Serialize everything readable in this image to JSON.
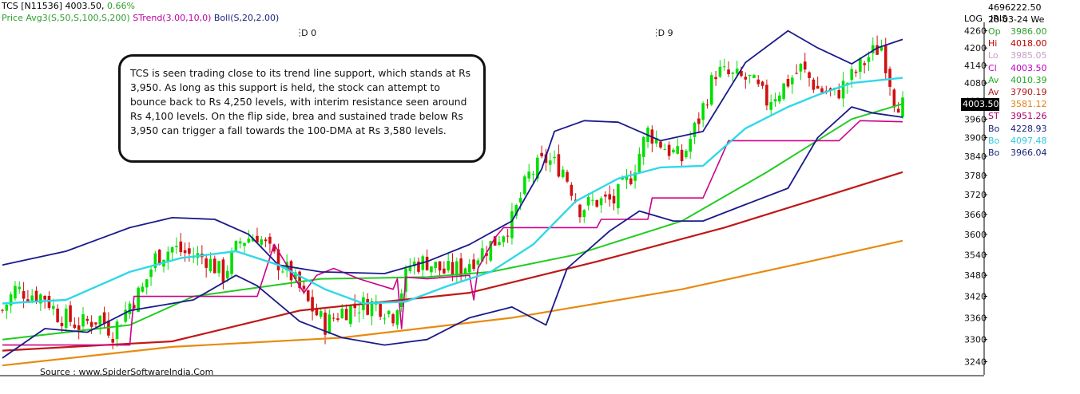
{
  "header": {
    "symbol": "TCS [N11536]",
    "last_price": "4003.50,",
    "change_pct": "0.66%",
    "legend_price": "Price",
    "legend_avg": "Avg3(S,50,S,100,S,200)",
    "legend_strend": "STrend(3.00,10,0)",
    "legend_boll": "Boll(S,20,2.00)",
    "volume": "4696222.50",
    "log_label": "LOG",
    "iris_label": "IRIS",
    "date": "20-03-24 We"
  },
  "info_panel": [
    {
      "label": "Op",
      "value": "3986.00",
      "color": "#2e9e2e"
    },
    {
      "label": "Hi",
      "value": "4018.00",
      "color": "#c00000"
    },
    {
      "label": "Lo",
      "value": "3985.05",
      "color": "#c8a0c8"
    },
    {
      "label": "Cl",
      "value": "4003.50",
      "color": "#c000c0"
    },
    {
      "label": "Av",
      "value": "4010.39",
      "color": "#22aa22"
    },
    {
      "label": "Av",
      "value": "3790.19",
      "color": "#b01818"
    },
    {
      "label": "Av",
      "value": "3581.12",
      "color": "#e08010"
    },
    {
      "label": "ST",
      "value": "3951.26",
      "color": "#b0006a"
    },
    {
      "label": "Bo",
      "value": "4228.93",
      "color": "#1a237e"
    },
    {
      "label": "Bo",
      "value": "4097.48",
      "color": "#30c8e0"
    },
    {
      "label": "Bo",
      "value": "3966.04",
      "color": "#1a237e"
    }
  ],
  "current_price_label": "4003.50",
  "annotation": "TCS is seen trading close to its trend line support, which stands at Rs 3,950. As long as this support is held, the stock can attempt to bounce back to Rs 4,250 levels, with interim resistance seen around Rs 4,100 levels. On the flip side, brea and sustained trade below Rs 3,950 can trigger a fall towards the 100-DMA at Rs 3,580 levels.",
  "source": "Source : www.SpiderSoftwareIndia.Com",
  "chart_data": {
    "type": "line",
    "log_scale": true,
    "grid": false,
    "y_ticks": [
      4260,
      4200,
      4140,
      4080,
      4020,
      3960,
      3900,
      3840,
      3780,
      3720,
      3660,
      3600,
      3540,
      3480,
      3420,
      3360,
      3300,
      3240
    ],
    "ylim": [
      3205,
      4290
    ],
    "x_markers": [
      {
        "label": "D 0",
        "bar": 70
      },
      {
        "label": "D 9",
        "bar": 154
      }
    ],
    "bar_count": 213,
    "colors": {
      "up": "#00e000",
      "down": "#d01010",
      "sma50": "#22cc22",
      "sma100": "#c01818",
      "sma200": "#e88a10",
      "strend": "#cc0088",
      "boll_outer": "#1a1a8c",
      "boll_mid": "#30d8e8"
    },
    "price_anchors": [
      [
        0,
        3380
      ],
      [
        3,
        3440
      ],
      [
        6,
        3430
      ],
      [
        10,
        3420
      ],
      [
        13,
        3370
      ],
      [
        18,
        3340
      ],
      [
        23,
        3360
      ],
      [
        26,
        3320
      ],
      [
        30,
        3400
      ],
      [
        33,
        3440
      ],
      [
        36,
        3530
      ],
      [
        40,
        3560
      ],
      [
        44,
        3540
      ],
      [
        48,
        3530
      ],
      [
        52,
        3480
      ],
      [
        56,
        3580
      ],
      [
        60,
        3600
      ],
      [
        64,
        3530
      ],
      [
        68,
        3480
      ],
      [
        72,
        3400
      ],
      [
        76,
        3340
      ],
      [
        80,
        3380
      ],
      [
        84,
        3395
      ],
      [
        88,
        3400
      ],
      [
        92,
        3370
      ],
      [
        96,
        3510
      ],
      [
        100,
        3520
      ],
      [
        104,
        3490
      ],
      [
        108,
        3500
      ],
      [
        112,
        3540
      ],
      [
        116,
        3580
      ],
      [
        120,
        3640
      ],
      [
        124,
        3780
      ],
      [
        128,
        3830
      ],
      [
        132,
        3800
      ],
      [
        136,
        3680
      ],
      [
        140,
        3700
      ],
      [
        144,
        3700
      ],
      [
        148,
        3780
      ],
      [
        152,
        3920
      ],
      [
        156,
        3870
      ],
      [
        160,
        3830
      ],
      [
        164,
        3960
      ],
      [
        168,
        4120
      ],
      [
        172,
        4100
      ],
      [
        176,
        4090
      ],
      [
        180,
        4020
      ],
      [
        184,
        4070
      ],
      [
        188,
        4130
      ],
      [
        192,
        4060
      ],
      [
        196,
        4040
      ],
      [
        200,
        4100
      ],
      [
        204,
        4170
      ],
      [
        207,
        4210
      ],
      [
        210,
        4030
      ],
      [
        212,
        4003.5
      ]
    ],
    "sma50_points": [
      [
        0,
        3300
      ],
      [
        30,
        3340
      ],
      [
        45,
        3420
      ],
      [
        75,
        3470
      ],
      [
        100,
        3475
      ],
      [
        115,
        3490
      ],
      [
        135,
        3540
      ],
      [
        160,
        3640
      ],
      [
        180,
        3790
      ],
      [
        200,
        3960
      ],
      [
        212,
        4010.39
      ]
    ],
    "sma100_points": [
      [
        0,
        3270
      ],
      [
        40,
        3295
      ],
      [
        70,
        3380
      ],
      [
        110,
        3430
      ],
      [
        140,
        3520
      ],
      [
        170,
        3620
      ],
      [
        195,
        3720
      ],
      [
        212,
        3790.19
      ]
    ],
    "sma200_points": [
      [
        0,
        3230
      ],
      [
        40,
        3280
      ],
      [
        80,
        3305
      ],
      [
        120,
        3360
      ],
      [
        160,
        3440
      ],
      [
        190,
        3520
      ],
      [
        212,
        3581.12
      ]
    ],
    "strend_points": [
      [
        0,
        3285
      ],
      [
        30,
        3285
      ],
      [
        31,
        3420
      ],
      [
        60,
        3420
      ],
      [
        64,
        3570
      ],
      [
        71,
        3430
      ],
      [
        74,
        3480
      ],
      [
        78,
        3500
      ],
      [
        84,
        3470
      ],
      [
        92,
        3440
      ],
      [
        93,
        3470
      ],
      [
        94,
        3330
      ],
      [
        95,
        3475
      ],
      [
        100,
        3470
      ],
      [
        110,
        3480
      ],
      [
        111,
        3410
      ],
      [
        112,
        3500
      ],
      [
        116,
        3590
      ],
      [
        118,
        3620
      ],
      [
        140,
        3620
      ],
      [
        141,
        3645
      ],
      [
        152,
        3645
      ],
      [
        153,
        3710
      ],
      [
        165,
        3710
      ],
      [
        171,
        3890
      ],
      [
        176,
        3890
      ],
      [
        177,
        3890
      ],
      [
        197,
        3890
      ],
      [
        202,
        3955
      ],
      [
        212,
        3951.26
      ]
    ],
    "boll_upper_points": [
      [
        0,
        3510
      ],
      [
        15,
        3550
      ],
      [
        30,
        3620
      ],
      [
        40,
        3650
      ],
      [
        50,
        3645
      ],
      [
        58,
        3600
      ],
      [
        65,
        3510
      ],
      [
        75,
        3490
      ],
      [
        90,
        3485
      ],
      [
        100,
        3520
      ],
      [
        110,
        3570
      ],
      [
        120,
        3640
      ],
      [
        127,
        3800
      ],
      [
        130,
        3920
      ],
      [
        137,
        3955
      ],
      [
        145,
        3950
      ],
      [
        155,
        3890
      ],
      [
        165,
        3920
      ],
      [
        175,
        4150
      ],
      [
        185,
        4260
      ],
      [
        192,
        4200
      ],
      [
        200,
        4145
      ],
      [
        206,
        4200
      ],
      [
        212,
        4230
      ]
    ],
    "boll_mid_points": [
      [
        0,
        3400
      ],
      [
        15,
        3410
      ],
      [
        30,
        3490
      ],
      [
        42,
        3530
      ],
      [
        55,
        3550
      ],
      [
        65,
        3510
      ],
      [
        76,
        3440
      ],
      [
        85,
        3400
      ],
      [
        95,
        3405
      ],
      [
        105,
        3450
      ],
      [
        115,
        3490
      ],
      [
        125,
        3570
      ],
      [
        135,
        3700
      ],
      [
        145,
        3770
      ],
      [
        155,
        3805
      ],
      [
        165,
        3810
      ],
      [
        175,
        3930
      ],
      [
        185,
        4000
      ],
      [
        192,
        4040
      ],
      [
        200,
        4080
      ],
      [
        212,
        4097.48
      ]
    ],
    "boll_lower_points": [
      [
        0,
        3250
      ],
      [
        10,
        3330
      ],
      [
        20,
        3320
      ],
      [
        30,
        3380
      ],
      [
        45,
        3410
      ],
      [
        55,
        3480
      ],
      [
        60,
        3450
      ],
      [
        70,
        3350
      ],
      [
        80,
        3305
      ],
      [
        90,
        3285
      ],
      [
        100,
        3300
      ],
      [
        110,
        3360
      ],
      [
        120,
        3390
      ],
      [
        128,
        3340
      ],
      [
        133,
        3500
      ],
      [
        143,
        3610
      ],
      [
        150,
        3670
      ],
      [
        158,
        3640
      ],
      [
        165,
        3640
      ],
      [
        175,
        3690
      ],
      [
        185,
        3740
      ],
      [
        192,
        3900
      ],
      [
        200,
        4000
      ],
      [
        205,
        3980
      ],
      [
        212,
        3966.04
      ]
    ]
  }
}
